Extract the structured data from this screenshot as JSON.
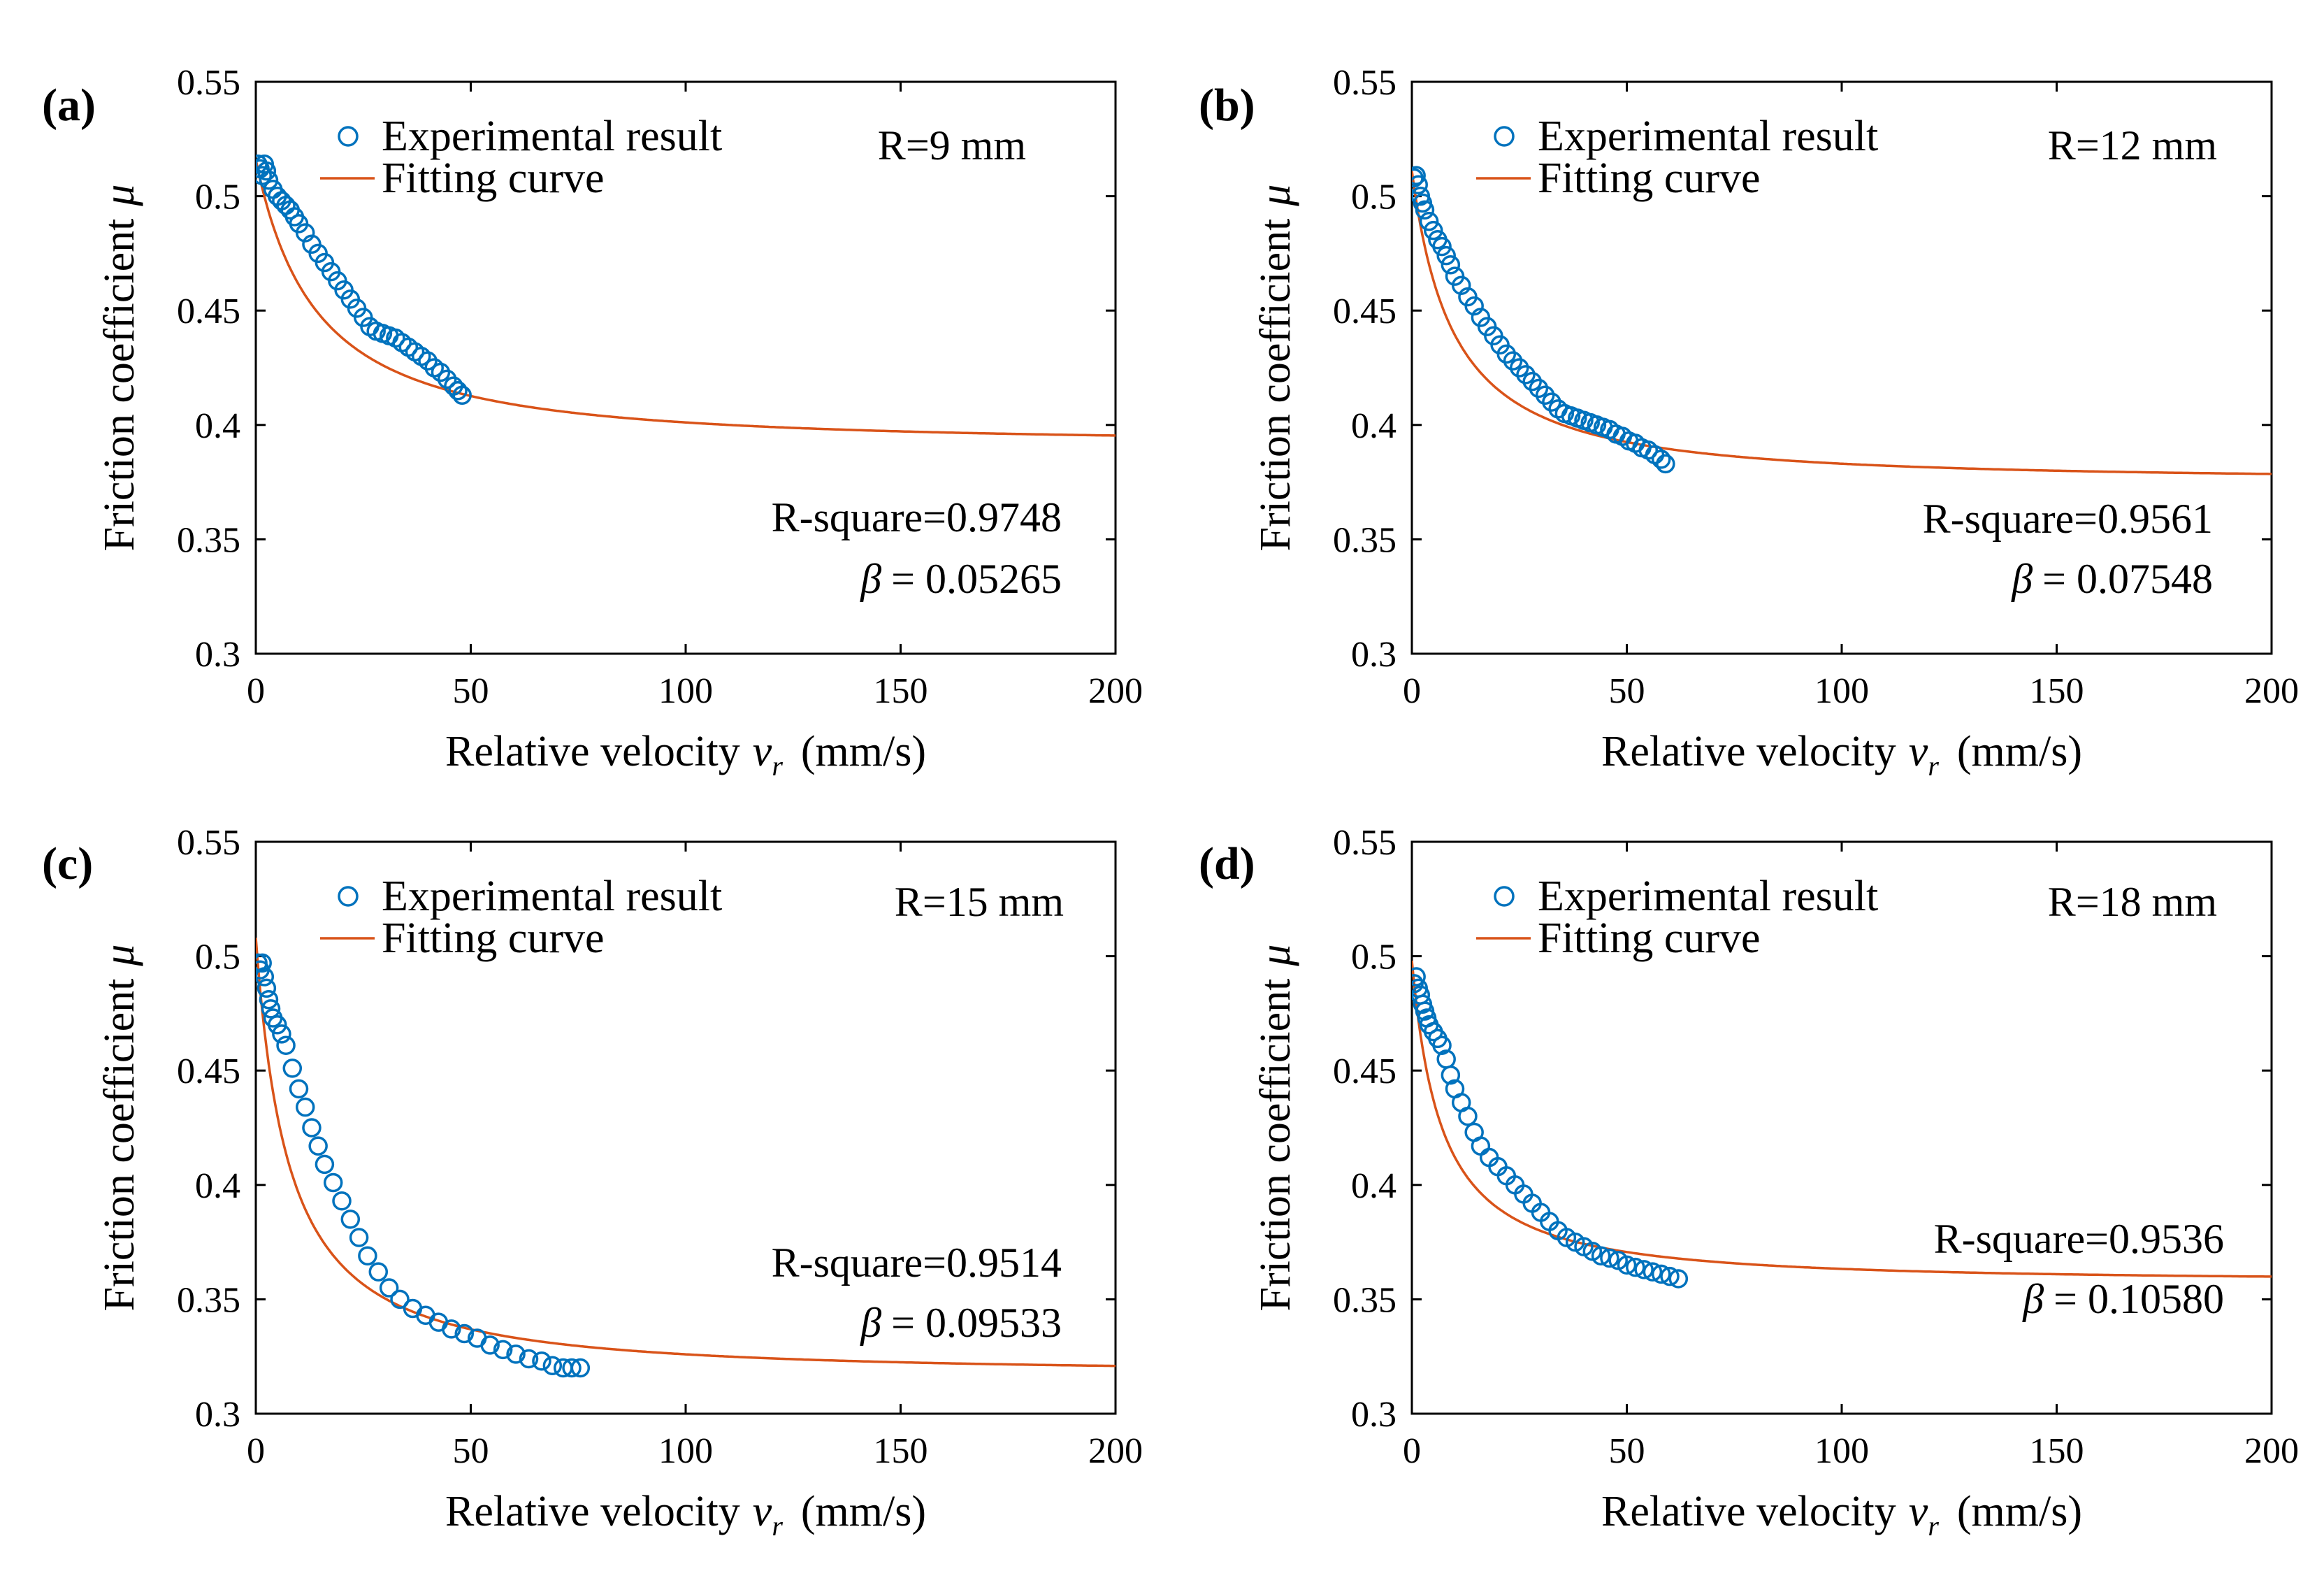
{
  "figure": {
    "colors": {
      "experimental": "#0072BD",
      "fitting": "#D95319",
      "axis": "#000000"
    }
  },
  "chart_data": [
    {
      "type": "scatter",
      "panel_label": "(a)",
      "xlabel": "Relative velocity",
      "xlabel_var": "v",
      "xlabel_sub": "r",
      "xlabel_unit": "(mm/s)",
      "ylabel": "Friction coefficient",
      "ylabel_var": "μ",
      "xlim": [
        0,
        200
      ],
      "ylim": [
        0.3,
        0.55
      ],
      "xticks": [
        0,
        50,
        100,
        150,
        200
      ],
      "xtick_labels": [
        "0",
        "50",
        "100",
        "150",
        "200"
      ],
      "yticks": [
        0.3,
        0.35,
        0.4,
        0.45,
        0.5,
        0.55
      ],
      "ytick_labels": [
        "0.3",
        "0.35",
        "0.4",
        "0.45",
        "0.5",
        "0.55"
      ],
      "legend": [
        "Experimental result",
        "Fitting curve"
      ],
      "legend_location": "top-left",
      "radius_label": "R=9 mm",
      "r_square_label": "R-square=0.9748",
      "beta_symbol": "β",
      "beta_value": "= 0.05265",
      "fit": {
        "mu_inf": 0.392,
        "mu_0": 0.516,
        "beta": 0.05265
      },
      "series": [
        {
          "name": "Experimental result",
          "x": [
            0.5,
            1,
            1.5,
            2,
            2.5,
            3,
            4,
            5,
            6,
            7,
            8,
            9,
            10,
            11.5,
            13,
            14.5,
            16,
            17.5,
            19,
            20.5,
            22,
            23.5,
            25,
            26.5,
            28,
            29.5,
            31,
            32.5,
            34,
            35.5,
            37,
            38.5,
            40,
            41.5,
            43,
            44.5,
            46,
            47,
            48
          ],
          "y": [
            0.514,
            0.512,
            0.509,
            0.514,
            0.511,
            0.507,
            0.503,
            0.5,
            0.498,
            0.496,
            0.494,
            0.491,
            0.488,
            0.484,
            0.479,
            0.475,
            0.471,
            0.467,
            0.463,
            0.459,
            0.455,
            0.451,
            0.447,
            0.443,
            0.441,
            0.44,
            0.439,
            0.438,
            0.436,
            0.434,
            0.432,
            0.43,
            0.428,
            0.425,
            0.423,
            0.42,
            0.417,
            0.415,
            0.413
          ]
        },
        {
          "name": "Fitting curve",
          "x": [],
          "y": []
        }
      ]
    },
    {
      "type": "scatter",
      "panel_label": "(b)",
      "xlabel": "Relative velocity",
      "xlabel_var": "v",
      "xlabel_sub": "r",
      "xlabel_unit": "(mm/s)",
      "ylabel": "Friction coefficient",
      "ylabel_var": "μ",
      "xlim": [
        0,
        200
      ],
      "ylim": [
        0.3,
        0.55
      ],
      "xticks": [
        0,
        50,
        100,
        150,
        200
      ],
      "xtick_labels": [
        "0",
        "50",
        "100",
        "150",
        "200"
      ],
      "yticks": [
        0.3,
        0.35,
        0.4,
        0.45,
        0.5,
        0.55
      ],
      "ytick_labels": [
        "0.3",
        "0.35",
        "0.4",
        "0.45",
        "0.5",
        "0.55"
      ],
      "legend": [
        "Experimental result",
        "Fitting curve"
      ],
      "legend_location": "top-left",
      "radius_label": "R=12 mm",
      "r_square_label": "R-square=0.9561",
      "beta_symbol": "β",
      "beta_value": "= 0.07548",
      "fit": {
        "mu_inf": 0.376,
        "mu_0": 0.511,
        "beta": 0.07548
      },
      "series": [
        {
          "name": "Experimental result",
          "x": [
            0.5,
            1,
            1.5,
            2,
            2.5,
            3,
            4,
            5,
            6,
            7,
            8,
            9,
            10,
            11.5,
            13,
            14.5,
            16,
            17.5,
            19,
            20.5,
            22,
            23.5,
            25,
            26.5,
            28,
            29.5,
            31,
            32.5,
            34,
            35.5,
            37,
            38.5,
            40,
            41.5,
            43,
            44.5,
            46,
            47.5,
            49,
            50.5,
            52,
            53.5,
            55,
            56.5,
            58,
            59
          ],
          "y": [
            0.508,
            0.509,
            0.505,
            0.5,
            0.497,
            0.494,
            0.489,
            0.485,
            0.481,
            0.478,
            0.474,
            0.47,
            0.465,
            0.461,
            0.456,
            0.452,
            0.447,
            0.443,
            0.439,
            0.435,
            0.431,
            0.428,
            0.425,
            0.422,
            0.419,
            0.416,
            0.413,
            0.41,
            0.407,
            0.405,
            0.404,
            0.403,
            0.402,
            0.401,
            0.4,
            0.399,
            0.398,
            0.396,
            0.395,
            0.393,
            0.392,
            0.39,
            0.389,
            0.387,
            0.385,
            0.383
          ]
        },
        {
          "name": "Fitting curve",
          "x": [],
          "y": []
        }
      ]
    },
    {
      "type": "scatter",
      "panel_label": "(c)",
      "xlabel": "Relative velocity",
      "xlabel_var": "v",
      "xlabel_sub": "r",
      "xlabel_unit": "(mm/s)",
      "ylabel": "Friction coefficient",
      "ylabel_var": "μ",
      "xlim": [
        0,
        200
      ],
      "ylim": [
        0.3,
        0.55
      ],
      "xticks": [
        0,
        50,
        100,
        150,
        200
      ],
      "xtick_labels": [
        "0",
        "50",
        "100",
        "150",
        "200"
      ],
      "yticks": [
        0.3,
        0.35,
        0.4,
        0.45,
        0.5,
        0.55
      ],
      "ytick_labels": [
        "0.3",
        "0.35",
        "0.4",
        "0.45",
        "0.5",
        "0.55"
      ],
      "legend": [
        "Experimental result",
        "Fitting curve"
      ],
      "legend_location": "top-left",
      "radius_label": "R=15 mm",
      "r_square_label": "R-square=0.9514",
      "beta_symbol": "β",
      "beta_value": "= 0.09533",
      "fit": {
        "mu_inf": 0.318,
        "mu_0": 0.508,
        "beta": 0.09533
      },
      "series": [
        {
          "name": "Experimental result",
          "x": [
            0.5,
            1,
            1.5,
            2,
            2.5,
            3,
            3.5,
            4,
            5,
            6,
            7,
            8.5,
            10,
            11.5,
            13,
            14.5,
            16,
            18,
            20,
            22,
            24,
            26,
            28.5,
            31,
            33.5,
            36.5,
            39.5,
            42.5,
            45.5,
            48.5,
            51.5,
            54.5,
            57.5,
            60.5,
            63.5,
            66.5,
            69,
            71.5,
            73.5,
            75.5
          ],
          "y": [
            0.497,
            0.494,
            0.497,
            0.491,
            0.486,
            0.481,
            0.477,
            0.473,
            0.47,
            0.466,
            0.461,
            0.451,
            0.442,
            0.434,
            0.425,
            0.417,
            0.409,
            0.401,
            0.393,
            0.385,
            0.377,
            0.369,
            0.362,
            0.355,
            0.35,
            0.346,
            0.343,
            0.34,
            0.337,
            0.335,
            0.333,
            0.33,
            0.328,
            0.326,
            0.324,
            0.323,
            0.321,
            0.32,
            0.32,
            0.32
          ]
        },
        {
          "name": "Fitting curve",
          "x": [],
          "y": []
        }
      ]
    },
    {
      "type": "scatter",
      "panel_label": "(d)",
      "xlabel": "Relative velocity",
      "xlabel_var": "v",
      "xlabel_sub": "r",
      "xlabel_unit": "(mm/s)",
      "ylabel": "Friction coefficient",
      "ylabel_var": "μ",
      "xlim": [
        0,
        200
      ],
      "ylim": [
        0.3,
        0.55
      ],
      "xticks": [
        0,
        50,
        100,
        150,
        200
      ],
      "xtick_labels": [
        "0",
        "50",
        "100",
        "150",
        "200"
      ],
      "yticks": [
        0.3,
        0.35,
        0.4,
        0.45,
        0.5,
        0.55
      ],
      "ytick_labels": [
        "0.3",
        "0.35",
        "0.4",
        "0.45",
        "0.5",
        "0.55"
      ],
      "legend": [
        "Experimental result",
        "Fitting curve"
      ],
      "legend_location": "top-left",
      "radius_label": "R=18 mm",
      "r_square_label": "R-square=0.9536",
      "beta_symbol": "β",
      "beta_value": "= 0.10580",
      "fit": {
        "mu_inf": 0.358,
        "mu_0": 0.498,
        "beta": 0.1058
      },
      "series": [
        {
          "name": "Experimental result",
          "x": [
            0.5,
            1,
            1.5,
            2,
            2.5,
            3,
            3.5,
            4,
            5,
            6,
            7,
            8,
            9,
            10,
            11.5,
            13,
            14.5,
            16,
            18,
            20,
            22,
            24,
            26,
            28,
            30,
            32,
            34,
            36,
            38,
            40,
            42,
            44,
            46,
            48,
            50,
            52,
            54,
            56,
            58,
            60,
            62
          ],
          "y": [
            0.488,
            0.491,
            0.486,
            0.483,
            0.479,
            0.476,
            0.473,
            0.47,
            0.467,
            0.464,
            0.461,
            0.455,
            0.448,
            0.442,
            0.436,
            0.43,
            0.423,
            0.417,
            0.412,
            0.408,
            0.404,
            0.4,
            0.396,
            0.392,
            0.388,
            0.384,
            0.38,
            0.377,
            0.375,
            0.373,
            0.371,
            0.369,
            0.368,
            0.367,
            0.365,
            0.364,
            0.363,
            0.362,
            0.361,
            0.36,
            0.359
          ]
        },
        {
          "name": "Fitting curve",
          "x": [],
          "y": []
        }
      ]
    }
  ]
}
